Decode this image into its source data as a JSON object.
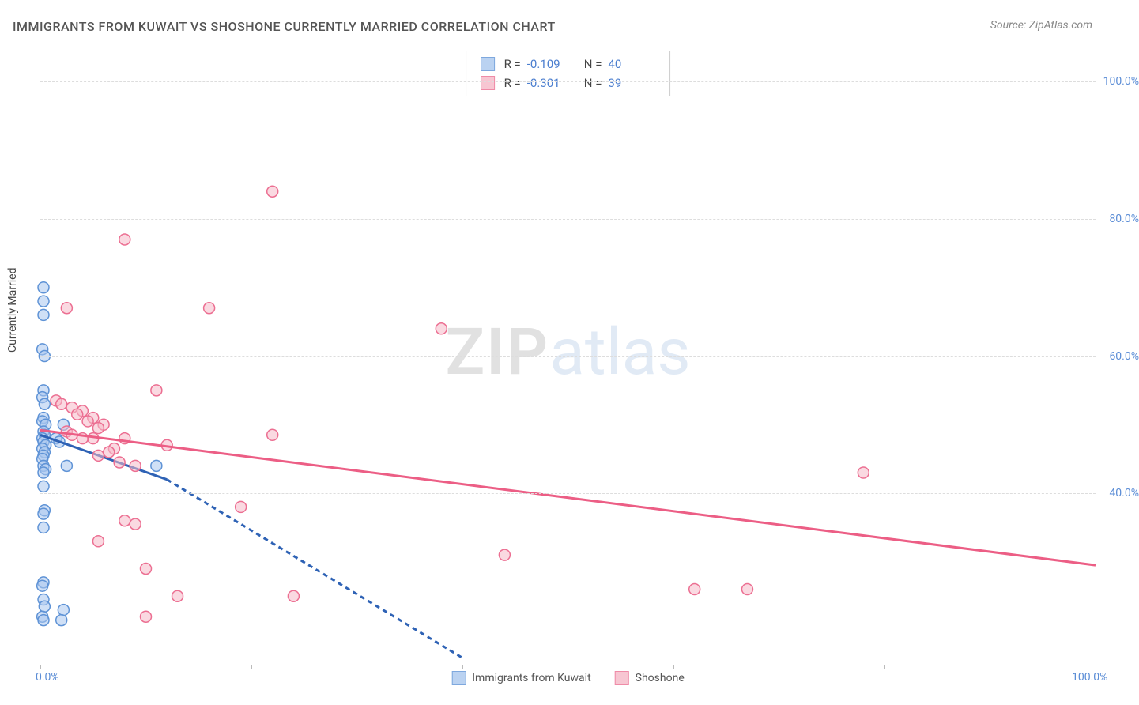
{
  "title": "IMMIGRANTS FROM KUWAIT VS SHOSHONE CURRENTLY MARRIED CORRELATION CHART",
  "source": "Source: ZipAtlas.com",
  "y_title": "Currently Married",
  "watermark": {
    "a": "ZIP",
    "b": "atlas"
  },
  "chart": {
    "type": "scatter",
    "xlim": [
      0,
      100
    ],
    "ylim": [
      15,
      105
    ],
    "x_ticks": [
      0,
      20,
      40,
      60,
      80,
      100
    ],
    "x_tick_labels": {
      "0": "0.0%",
      "100": "100.0%"
    },
    "y_gridlines": [
      40,
      60,
      80,
      100
    ],
    "y_tick_labels": {
      "40": "40.0%",
      "60": "60.0%",
      "80": "80.0%",
      "100": "100.0%"
    },
    "background_color": "#ffffff",
    "grid_color": "#dddddd",
    "axis_color": "#bbbbbb",
    "marker_radius": 7,
    "marker_stroke_width": 1.5,
    "series": [
      {
        "name": "Immigrants from Kuwait",
        "fill": "#a9c7ee",
        "stroke": "#5f93d6",
        "fill_opacity": 0.55,
        "R": "-0.109",
        "N": "40",
        "trend": {
          "color": "#2e62b5",
          "width": 3,
          "solid_segment": [
            [
              0,
              48.5
            ],
            [
              12,
              42
            ]
          ],
          "dashed_segment": [
            [
              12,
              42
            ],
            [
              40,
              16
            ]
          ]
        },
        "points": [
          [
            0.3,
            70
          ],
          [
            0.3,
            68
          ],
          [
            0.3,
            66
          ],
          [
            0.2,
            61
          ],
          [
            0.4,
            60
          ],
          [
            0.3,
            55
          ],
          [
            0.2,
            54
          ],
          [
            0.4,
            53
          ],
          [
            0.3,
            51
          ],
          [
            0.2,
            50.5
          ],
          [
            0.5,
            50
          ],
          [
            0.3,
            49
          ],
          [
            0.4,
            48.5
          ],
          [
            0.2,
            48
          ],
          [
            0.3,
            47.5
          ],
          [
            0.5,
            47
          ],
          [
            0.2,
            46.5
          ],
          [
            0.4,
            46
          ],
          [
            0.3,
            45.5
          ],
          [
            0.2,
            45
          ],
          [
            0.3,
            44
          ],
          [
            0.5,
            43.5
          ],
          [
            0.3,
            43
          ],
          [
            1.5,
            48
          ],
          [
            1.8,
            47.5
          ],
          [
            2.2,
            50
          ],
          [
            2.5,
            44
          ],
          [
            11,
            44
          ],
          [
            0.3,
            41
          ],
          [
            0.4,
            37.5
          ],
          [
            0.3,
            37
          ],
          [
            0.3,
            35
          ],
          [
            0.3,
            27
          ],
          [
            0.2,
            26.5
          ],
          [
            0.3,
            24.5
          ],
          [
            0.4,
            23.5
          ],
          [
            0.2,
            22
          ],
          [
            0.3,
            21.5
          ],
          [
            2.2,
            23
          ],
          [
            2.0,
            21.5
          ]
        ]
      },
      {
        "name": "Shoshone",
        "fill": "#f6b9c8",
        "stroke": "#ec6f92",
        "fill_opacity": 0.55,
        "R": "-0.301",
        "N": "39",
        "trend": {
          "color": "#ec5e85",
          "width": 3,
          "solid_segment": [
            [
              0,
              49.2
            ],
            [
              100,
              29.5
            ]
          ]
        },
        "points": [
          [
            22,
            84
          ],
          [
            8,
            77
          ],
          [
            16,
            67
          ],
          [
            2.5,
            67
          ],
          [
            38,
            64
          ],
          [
            11,
            55
          ],
          [
            1.5,
            53.5
          ],
          [
            2,
            53
          ],
          [
            3,
            52.5
          ],
          [
            4,
            52
          ],
          [
            3.5,
            51.5
          ],
          [
            5,
            51
          ],
          [
            4.5,
            50.5
          ],
          [
            6,
            50
          ],
          [
            5.5,
            49.5
          ],
          [
            2.5,
            49
          ],
          [
            3,
            48.5
          ],
          [
            5,
            48
          ],
          [
            8,
            48
          ],
          [
            22,
            48.5
          ],
          [
            12,
            47
          ],
          [
            7,
            46.5
          ],
          [
            6.5,
            46
          ],
          [
            5.5,
            45.5
          ],
          [
            7.5,
            44.5
          ],
          [
            9,
            44
          ],
          [
            78,
            43
          ],
          [
            19,
            38
          ],
          [
            8,
            36
          ],
          [
            9,
            35.5
          ],
          [
            5.5,
            33
          ],
          [
            44,
            31
          ],
          [
            10,
            29
          ],
          [
            13,
            25
          ],
          [
            24,
            25
          ],
          [
            62,
            26
          ],
          [
            67,
            26
          ],
          [
            10,
            22
          ],
          [
            4,
            48
          ]
        ]
      }
    ],
    "stats_box": {
      "rows": [
        {
          "swatch_series": 0,
          "r_label": "R =",
          "n_label": "N ="
        },
        {
          "swatch_series": 1,
          "r_label": "R =",
          "n_label": "N ="
        }
      ]
    },
    "bottom_legend": [
      {
        "series": 0
      },
      {
        "series": 1
      }
    ]
  }
}
